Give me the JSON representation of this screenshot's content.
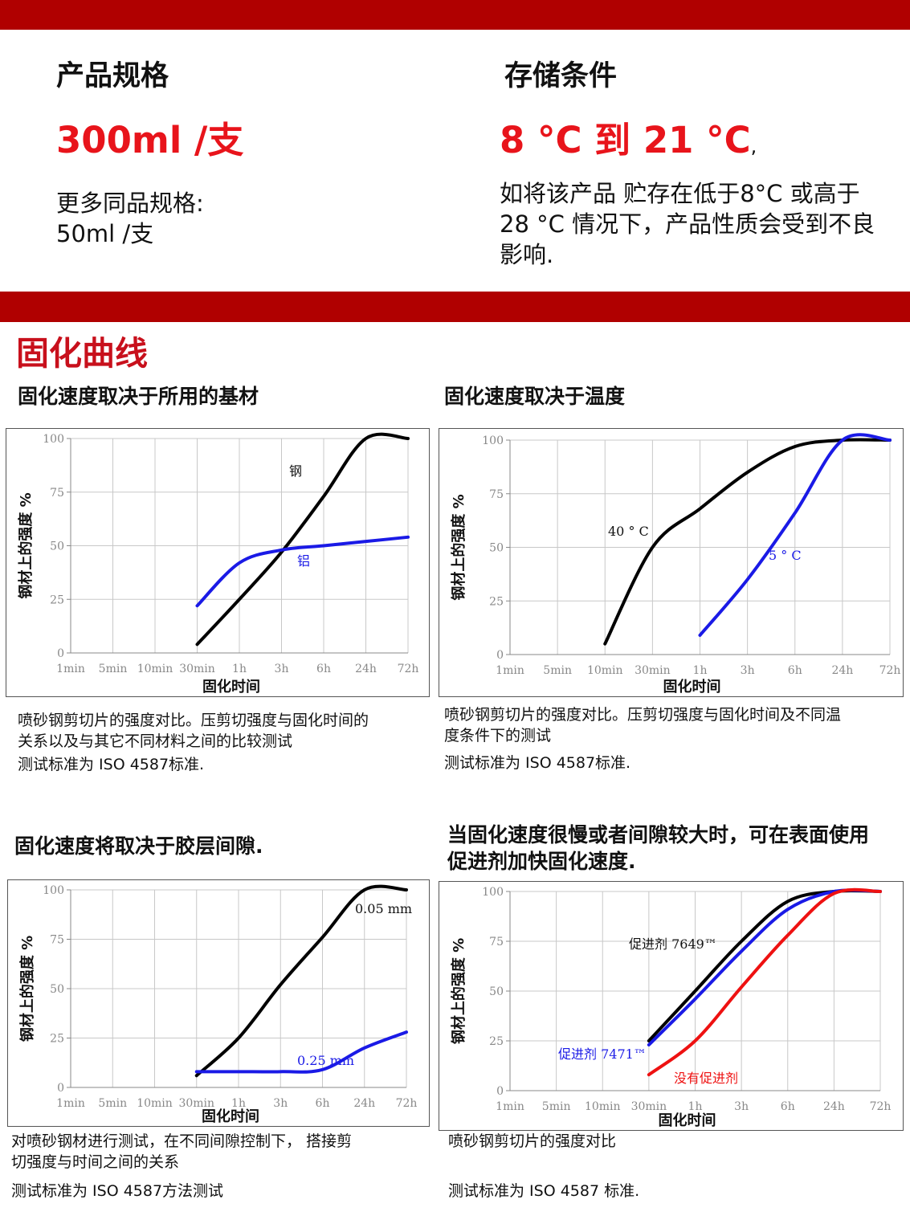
{
  "spec": {
    "heading": "产品规格",
    "value": "300ml /支",
    "more_label": "更多同品规格:",
    "more_value": "50ml /支"
  },
  "storage": {
    "heading": "存储条件",
    "value": "8 °C 到 21 °C",
    "value_suffix": ",",
    "note": "如将该产品 贮存在低于8°C 或高于28 °C 情况下，产品性质会受到不良影响."
  },
  "section_title": "固化曲线",
  "panels": [
    {
      "subtitle": "固化速度取决于所用的基材",
      "caption_lines": [
        "喷砂钢剪切片的强度对比。压剪切强度与固化时间的",
        "关系以及与其它不同材料之间的比较测试"
      ],
      "standard": "测试标准为 ISO 4587标准."
    },
    {
      "subtitle": "固化速度取决于温度",
      "caption_lines": [
        "喷砂钢剪切片的强度对比。压剪切强度与固化时间及不同温",
        "度条件下的测试"
      ],
      "standard": "测试标准为 ISO 4587标准."
    },
    {
      "subtitle": "固化速度将取决于胶层间隙.",
      "caption_lines": [
        "对喷砂钢材进行测试，在不同间隙控制下， 搭接剪",
        "切强度与时间之间的关系"
      ],
      "standard": "测试标准为 ISO 4587方法测试"
    },
    {
      "subtitle_lines": [
        "当固化速度很慢或者间隙较大时，可在表面使用",
        "促进剂加快固化速度."
      ],
      "caption_lines": [
        "喷砂钢剪切片的强度对比"
      ],
      "standard": "测试标准为 ISO 4587 标准."
    }
  ],
  "chart_data": [
    {
      "type": "line",
      "xlabel": "固化时间",
      "ylabel": "钢材上的强度 %",
      "x_ticks": [
        "1min",
        "5min",
        "10min",
        "30min",
        "1h",
        "3h",
        "6h",
        "24h",
        "72h"
      ],
      "y_ticks": [
        0,
        25,
        50,
        75,
        100
      ],
      "ylim": [
        0,
        100
      ],
      "grid": true,
      "series": [
        {
          "name": "钢",
          "color": "#000000",
          "x": [
            "30min",
            "1h",
            "3h",
            "6h",
            "24h",
            "72h"
          ],
          "values": [
            4,
            25,
            47,
            73,
            100,
            100
          ]
        },
        {
          "name": "铝",
          "color": "#1a1ae6",
          "x": [
            "30min",
            "1h",
            "3h",
            "6h",
            "24h",
            "72h"
          ],
          "values": [
            22,
            42,
            48,
            50,
            52,
            54
          ]
        }
      ]
    },
    {
      "type": "line",
      "xlabel": "固化时间",
      "ylabel": "钢材上的强度 %",
      "x_ticks": [
        "1min",
        "5min",
        "10min",
        "30min",
        "1h",
        "3h",
        "6h",
        "24h",
        "72h"
      ],
      "y_ticks": [
        0,
        25,
        50,
        75,
        100
      ],
      "ylim": [
        0,
        100
      ],
      "grid": true,
      "series": [
        {
          "name": "40 ° C",
          "color": "#000000",
          "x": [
            "10min",
            "30min",
            "1h",
            "3h",
            "6h",
            "24h",
            "72h"
          ],
          "values": [
            5,
            50,
            68,
            85,
            97,
            100,
            100
          ]
        },
        {
          "name": "5 ° C",
          "color": "#1a1ae6",
          "x": [
            "1h",
            "3h",
            "6h",
            "24h",
            "72h"
          ],
          "values": [
            9,
            35,
            66,
            100,
            100
          ]
        }
      ]
    },
    {
      "type": "line",
      "xlabel": "固化时间",
      "ylabel": "钢材上的强度 %",
      "x_ticks": [
        "1min",
        "5min",
        "10min",
        "30min",
        "1h",
        "3h",
        "6h",
        "24h",
        "72h"
      ],
      "y_ticks": [
        0,
        25,
        50,
        75,
        100
      ],
      "ylim": [
        0,
        100
      ],
      "grid": true,
      "series": [
        {
          "name": "0.05 mm",
          "color": "#000000",
          "x": [
            "30min",
            "1h",
            "3h",
            "6h",
            "24h",
            "72h"
          ],
          "values": [
            6,
            25,
            52,
            76,
            100,
            100
          ]
        },
        {
          "name": "0.25 mm",
          "color": "#1a1ae6",
          "x": [
            "30min",
            "1h",
            "3h",
            "6h",
            "24h",
            "72h"
          ],
          "values": [
            8,
            8,
            8,
            9,
            20,
            28
          ]
        }
      ]
    },
    {
      "type": "line",
      "xlabel": "固化时间",
      "ylabel": "钢材上的强度 %",
      "x_ticks": [
        "1min",
        "5min",
        "10min",
        "30min",
        "1h",
        "3h",
        "6h",
        "24h",
        "72h"
      ],
      "y_ticks": [
        0,
        25,
        50,
        75,
        100
      ],
      "ylim": [
        0,
        100
      ],
      "grid": true,
      "series": [
        {
          "name": "促进剂 7649™",
          "color": "#000000",
          "x": [
            "30min",
            "1h",
            "3h",
            "6h",
            "24h",
            "72h"
          ],
          "values": [
            25,
            50,
            75,
            95,
            100,
            100
          ]
        },
        {
          "name": "促进剂 7471™",
          "color": "#1a1ae6",
          "x": [
            "30min",
            "1h",
            "3h",
            "6h",
            "24h",
            "72h"
          ],
          "values": [
            23,
            46,
            70,
            91,
            100,
            100
          ]
        },
        {
          "name": "没有促进剂",
          "color": "#ee1111",
          "x": [
            "30min",
            "1h",
            "3h",
            "6h",
            "24h",
            "72h"
          ],
          "values": [
            8,
            25,
            52,
            78,
            99,
            100
          ]
        }
      ]
    }
  ]
}
